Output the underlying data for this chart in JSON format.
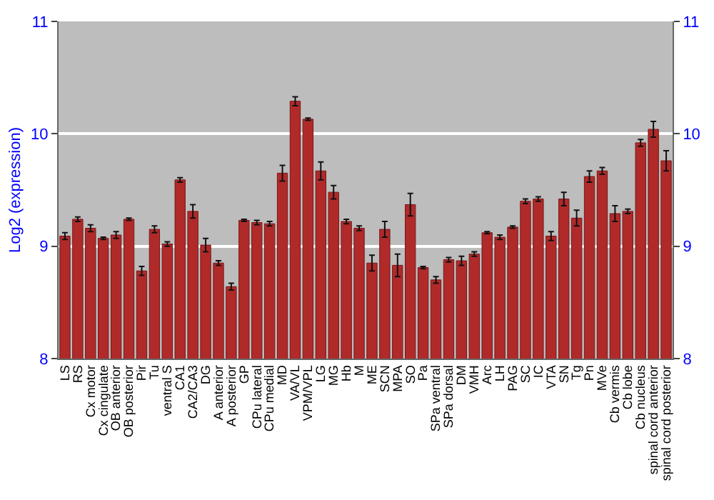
{
  "chart_data": {
    "type": "bar",
    "ylabel": "Log2 (expression)",
    "categories": [
      "LS",
      "RS",
      "Cx motor",
      "Cx cingulate",
      "OB anterior",
      "OB posterior",
      "Pir",
      "Tu",
      "ventral S",
      "CA1",
      "CA2/CA3",
      "DG",
      "A anterior",
      "A posterior",
      "GP",
      "CPu lateral",
      "CPu medial",
      "MD",
      "VA/VL",
      "VPM/VPL",
      "LG",
      "MG",
      "Hb",
      "M",
      "ME",
      "SCN",
      "MPA",
      "SO",
      "Pa",
      "SPa ventral",
      "SPa dorsal",
      "DM",
      "VMH",
      "Arc",
      "LH",
      "PAG",
      "SC",
      "IC",
      "VTA",
      "SN",
      "Tg",
      "Pn",
      "MVe",
      "Cb vermis",
      "Cb lobe",
      "Cb nucleus",
      "spinal cord anterior",
      "spinal cord posterior"
    ],
    "values": [
      9.09,
      9.24,
      9.16,
      9.07,
      9.1,
      9.24,
      8.78,
      9.15,
      9.02,
      9.59,
      9.31,
      9.01,
      8.85,
      8.64,
      9.23,
      9.21,
      9.2,
      9.65,
      10.29,
      10.13,
      9.67,
      9.48,
      9.22,
      9.16,
      8.85,
      9.15,
      8.83,
      9.37,
      8.81,
      8.7,
      8.88,
      8.87,
      8.93,
      9.12,
      9.08,
      9.17,
      9.4,
      9.42,
      9.09,
      9.42,
      9.25,
      9.62,
      9.67,
      9.29,
      9.31,
      9.92,
      10.04,
      9.76
    ],
    "errors": [
      0.03,
      0.02,
      0.03,
      0.01,
      0.03,
      0.01,
      0.04,
      0.03,
      0.02,
      0.02,
      0.06,
      0.06,
      0.02,
      0.03,
      0.01,
      0.02,
      0.02,
      0.07,
      0.04,
      0.01,
      0.08,
      0.06,
      0.02,
      0.02,
      0.07,
      0.07,
      0.1,
      0.1,
      0.01,
      0.03,
      0.02,
      0.04,
      0.02,
      0.01,
      0.02,
      0.01,
      0.02,
      0.02,
      0.04,
      0.06,
      0.07,
      0.05,
      0.03,
      0.07,
      0.02,
      0.03,
      0.07,
      0.09
    ],
    "color": "#b02a2a",
    "ylim": [
      8,
      11
    ],
    "yticks": [
      8,
      9,
      10,
      11
    ],
    "y2lim": [
      8,
      11
    ],
    "y2ticks": [
      8,
      9,
      10,
      11
    ],
    "grid": "y"
  }
}
